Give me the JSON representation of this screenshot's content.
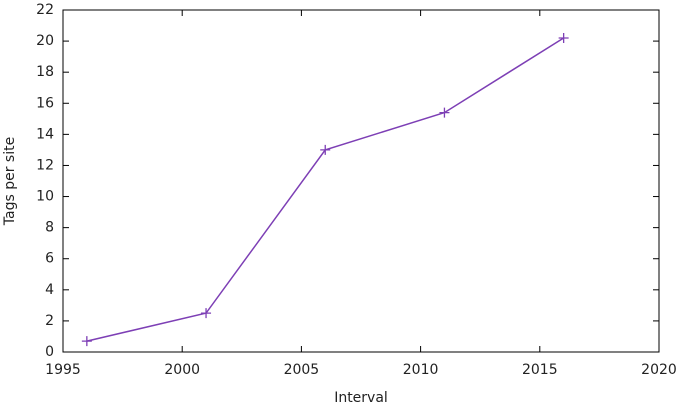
{
  "chart_data": {
    "type": "line",
    "x_label": "Interval",
    "y_label": "Tags per site",
    "x": [
      1996,
      2001,
      2006,
      2011,
      2016
    ],
    "values": [
      0.7,
      2.5,
      13,
      15.4,
      20.2
    ],
    "color": "#7d3fb5",
    "xlim": [
      1995,
      2020
    ],
    "xticks": [
      1995,
      2000,
      2005,
      2010,
      2015,
      2020
    ],
    "ylim": [
      0,
      22
    ],
    "yticks": [
      0,
      2,
      4,
      6,
      8,
      10,
      12,
      14,
      16,
      18,
      20,
      22
    ],
    "grid": false
  }
}
